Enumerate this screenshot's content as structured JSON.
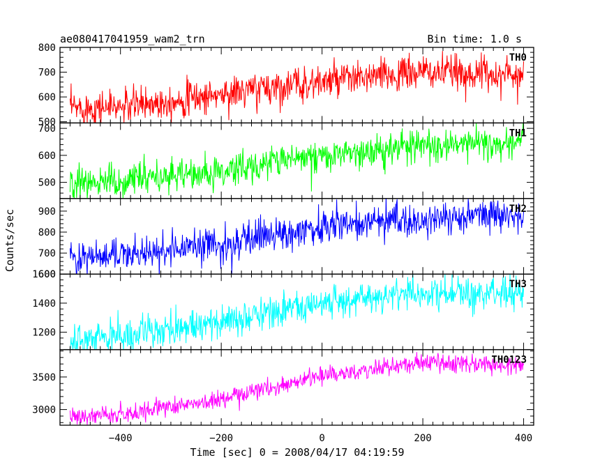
{
  "header": {
    "left_title": "ae080417041959_wam2_trn",
    "right_title": "Bin time: 1.0 s"
  },
  "axes": {
    "xlabel": "Time [sec] 0 = 2008/04/17 04:19:59",
    "ylabel": "Counts/sec"
  },
  "chart_data": {
    "type": "line",
    "title": "ae080417041959_wam2_trn",
    "subtitle": "Bin time: 1.0 s",
    "xlabel": "Time [sec] 0 = 2008/04/17 04:19:59",
    "ylabel": "Counts/sec",
    "xlim": [
      -520,
      420
    ],
    "x_ticks": [
      -400,
      -200,
      0,
      200,
      400
    ],
    "x_tick_labels": [
      "−400",
      "−200",
      "0",
      "200",
      "400"
    ],
    "x_range_data": [
      -500,
      400
    ],
    "bin_time": 1.0,
    "grid": false,
    "panels": [
      {
        "name": "TH0",
        "color": "#ff0000",
        "ylim": [
          495,
          800
        ],
        "y_ticks": [
          500,
          600,
          700,
          800
        ],
        "trend": [
          [
            -500,
            555
          ],
          [
            -400,
            560
          ],
          [
            -200,
            610
          ],
          [
            -100,
            640
          ],
          [
            0,
            660
          ],
          [
            200,
            700
          ],
          [
            400,
            690
          ]
        ],
        "noise": 35
      },
      {
        "name": "TH1",
        "color": "#00ff00",
        "ylim": [
          440,
          720
        ],
        "y_ticks": [
          500,
          600,
          700
        ],
        "trend": [
          [
            -500,
            500
          ],
          [
            -400,
            505
          ],
          [
            -200,
            540
          ],
          [
            -100,
            580
          ],
          [
            0,
            600
          ],
          [
            200,
            640
          ],
          [
            400,
            650
          ]
        ],
        "noise": 30
      },
      {
        "name": "TH2",
        "color": "#0000ff",
        "ylim": [
          600,
          960
        ],
        "y_ticks": [
          600,
          700,
          800,
          900
        ],
        "trend": [
          [
            -500,
            670
          ],
          [
            -400,
            690
          ],
          [
            -200,
            740
          ],
          [
            -100,
            790
          ],
          [
            0,
            830
          ],
          [
            200,
            870
          ],
          [
            400,
            880
          ]
        ],
        "noise": 40
      },
      {
        "name": "TH3",
        "color": "#00ffff",
        "ylim": [
          1080,
          1600
        ],
        "y_ticks": [
          1200,
          1400,
          1600
        ],
        "trend": [
          [
            -500,
            1140
          ],
          [
            -400,
            1170
          ],
          [
            -200,
            1270
          ],
          [
            -100,
            1340
          ],
          [
            0,
            1400
          ],
          [
            200,
            1470
          ],
          [
            400,
            1470
          ]
        ],
        "noise": 55
      },
      {
        "name": "TH0123",
        "color": "#ff00ff",
        "ylim": [
          2760,
          3920
        ],
        "y_ticks": [
          3000,
          3500
        ],
        "trend": [
          [
            -500,
            2880
          ],
          [
            -400,
            2920
          ],
          [
            -200,
            3150
          ],
          [
            -100,
            3350
          ],
          [
            0,
            3520
          ],
          [
            200,
            3720
          ],
          [
            400,
            3660
          ]
        ],
        "noise": 70
      }
    ]
  }
}
